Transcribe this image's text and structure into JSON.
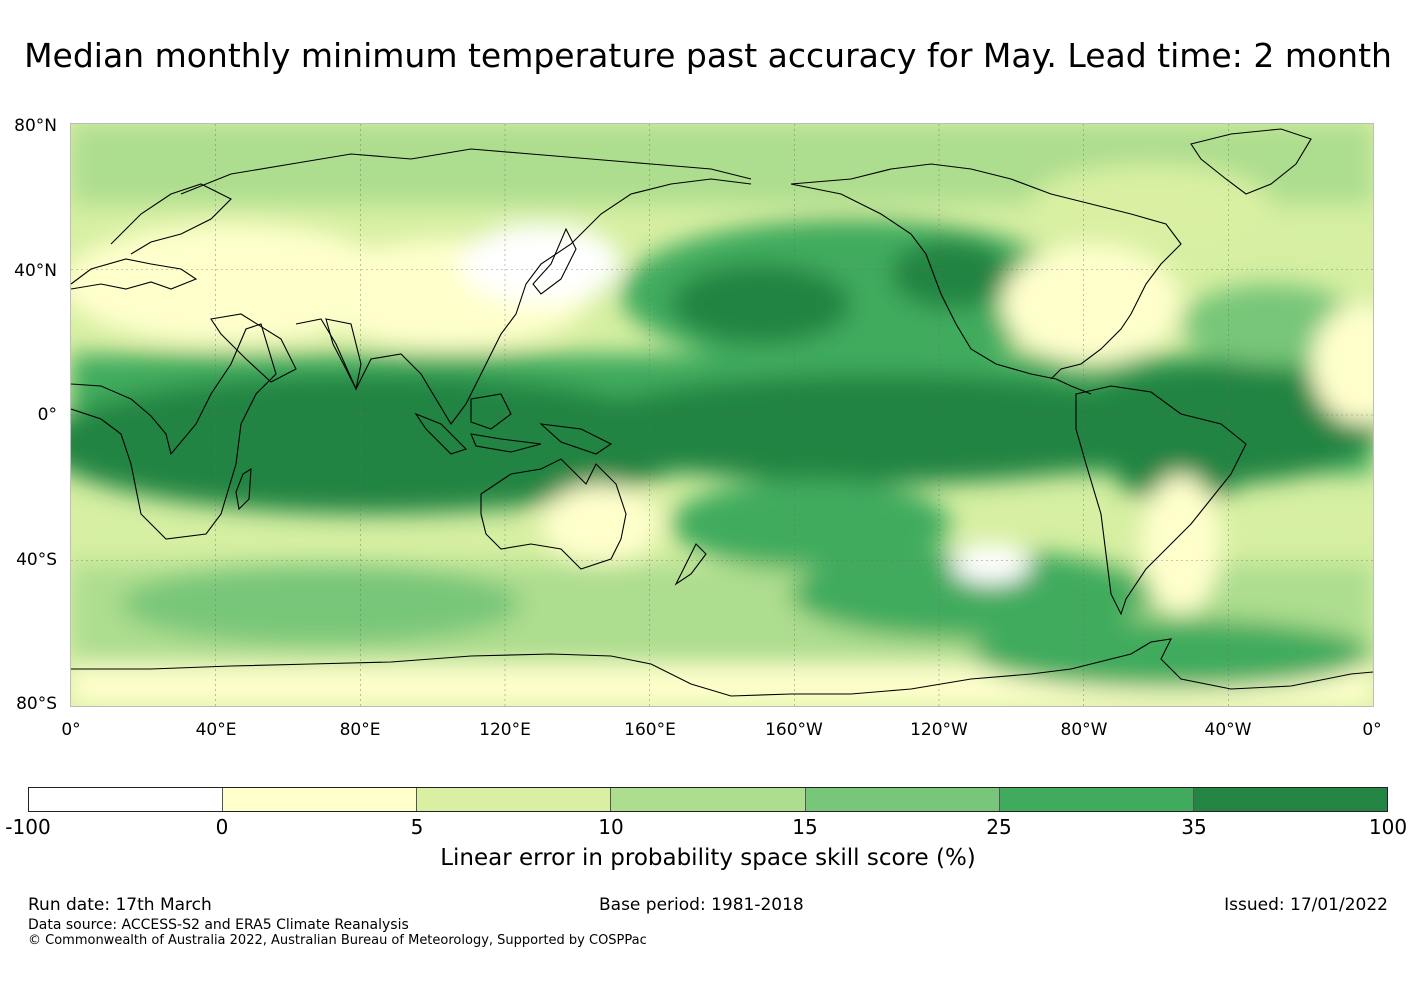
{
  "title": "Median monthly minimum temperature past accuracy for May. Lead time: 2 month",
  "map": {
    "lat_labels": [
      "80°N",
      "40°N",
      "0°",
      "40°S",
      "80°S"
    ],
    "lon_labels": [
      "0°",
      "40°E",
      "80°E",
      "120°E",
      "160°E",
      "160°W",
      "120°W",
      "80°W",
      "40°W",
      "0°"
    ],
    "lon_range": [
      0,
      360
    ],
    "lat_range": [
      -80,
      80
    ],
    "gridlines": true,
    "overlay": "coastlines"
  },
  "colorbar": {
    "ticks": [
      "-100",
      "0",
      "5",
      "10",
      "15",
      "25",
      "35",
      "100"
    ],
    "colors": [
      "#ffffff",
      "#ffffcc",
      "#d9f0a3",
      "#addd8e",
      "#78c679",
      "#41ab5d",
      "#238443"
    ],
    "label": "Linear error in probability space skill score (%)"
  },
  "footer": {
    "run_date": "Run date: 17th March",
    "base_period": "Base period: 1981-2018",
    "issued": "Issued: 17/01/2022",
    "data_source": "Data source: ACCESS-S2 and ERA5 Climate Reanalysis",
    "copyright": "© Commonwealth of Australia 2022, Australian Bureau of Meteorology, Supported by COSPPac"
  }
}
